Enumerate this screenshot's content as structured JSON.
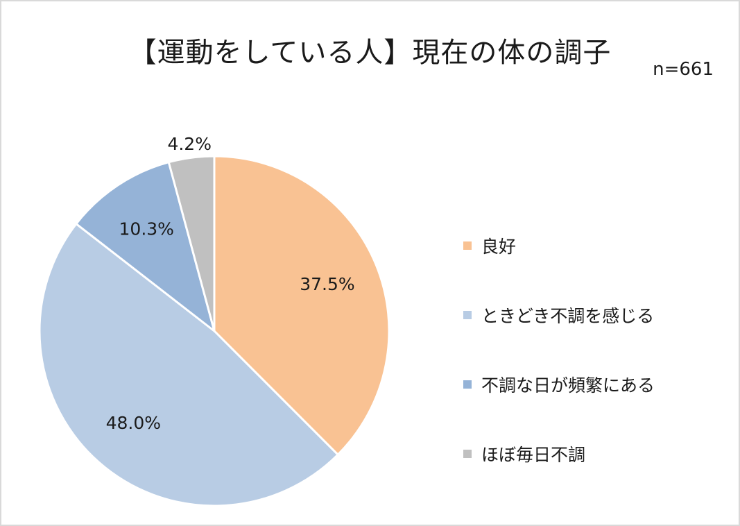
{
  "chart_data": {
    "type": "pie",
    "title": "【運動をしている人】現在の体の調子",
    "annotation": "n=661",
    "legend_position": "right",
    "slices": [
      {
        "label": "良好",
        "value": 37.5,
        "display": "37.5%",
        "color": "#F9C293"
      },
      {
        "label": "ときどき不調を感じる",
        "value": 48.0,
        "display": "48.0%",
        "color": "#B8CCE4"
      },
      {
        "label": "不調な日が頻繁にある",
        "value": 10.3,
        "display": "10.3%",
        "color": "#95B3D7"
      },
      {
        "label": "ほぼ毎日不調",
        "value": 4.2,
        "display": "4.2%",
        "color": "#C0C0C0"
      }
    ]
  }
}
